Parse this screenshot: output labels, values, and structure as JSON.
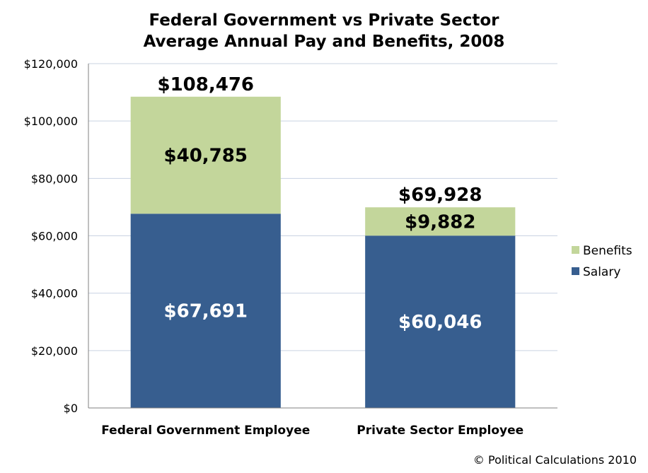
{
  "chart_data": {
    "type": "bar",
    "stacked": true,
    "title_lines": [
      "Federal Government vs Private Sector",
      "Average Annual Pay and Benefits, 2008"
    ],
    "categories": [
      "Federal Government Employee",
      "Private Sector Employee"
    ],
    "series": [
      {
        "name": "Salary",
        "values": [
          67691,
          60046
        ],
        "labels": [
          "$67,691",
          "$60,046"
        ],
        "color": "#375E8F",
        "label_color": "#ffffff"
      },
      {
        "name": "Benefits",
        "values": [
          40785,
          9882
        ],
        "labels": [
          "$40,785",
          "$9,882"
        ],
        "color": "#C3D69B",
        "label_color": "#000000"
      }
    ],
    "totals": [
      108476,
      69928
    ],
    "total_labels": [
      "$108,476",
      "$69,928"
    ],
    "y_ticks": [
      "$0",
      "$20,000",
      "$40,000",
      "$60,000",
      "$80,000",
      "$100,000",
      "$120,000"
    ],
    "ylim": [
      0,
      120000
    ],
    "grid": true,
    "legend_position": "right"
  },
  "copyright": "© Political Calculations 2010"
}
